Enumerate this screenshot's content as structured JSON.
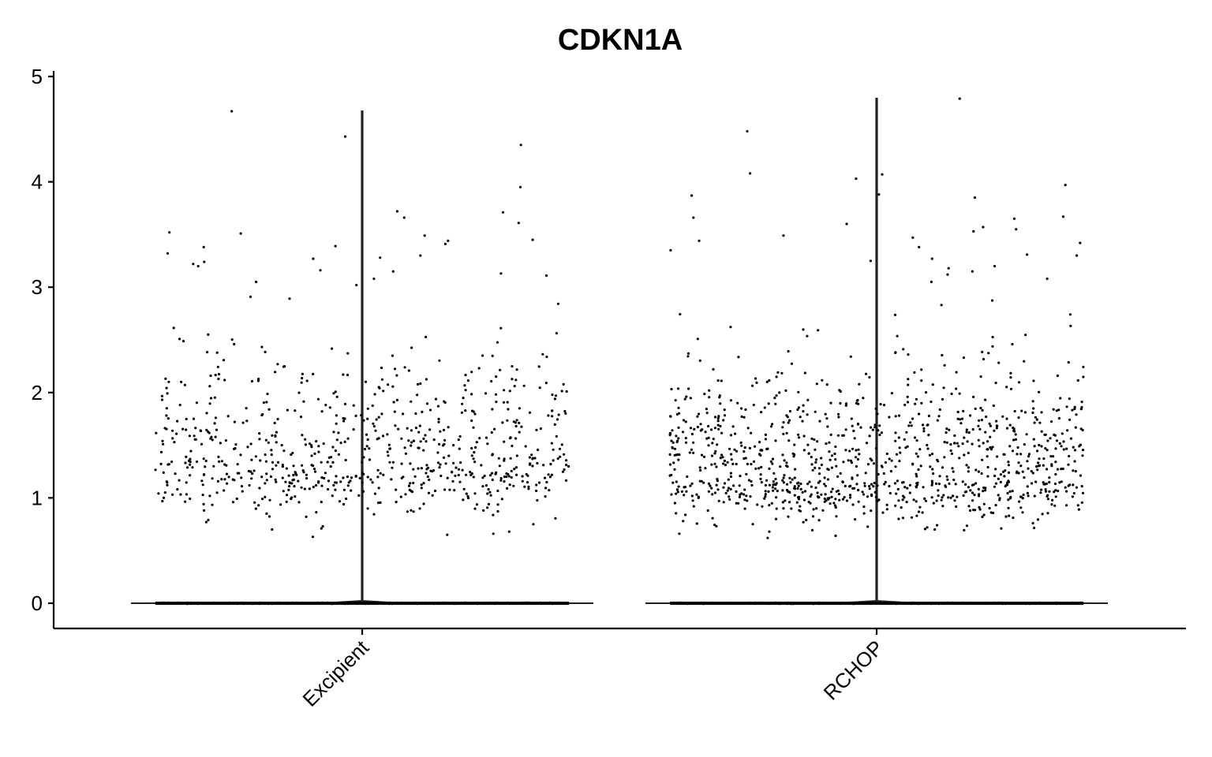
{
  "chart_data": {
    "type": "violin",
    "title": "CDKN1A",
    "xlabel": "",
    "ylabel": "",
    "categories": [
      "Excipient",
      "RCHOP"
    ],
    "ylim": [
      -0.24,
      5.03
    ],
    "yticks": [
      0,
      1,
      2,
      3,
      4,
      5
    ],
    "ytick_labels": [
      "0",
      "1",
      "2",
      "3",
      "4",
      "5"
    ],
    "grid": false,
    "legend": "none",
    "point_color": "#000000",
    "series": [
      {
        "category": "Excipient",
        "max": 4.67,
        "zero_mass": "large",
        "expressed_range": [
          0.63,
          4.67
        ],
        "expressed_density_mode": 1.25,
        "expressed_points": [
          4.67,
          4.43,
          4.35,
          3.95,
          3.72,
          3.71,
          3.66,
          3.61,
          3.52,
          3.51,
          3.49,
          3.45,
          3.44,
          3.41,
          3.39,
          3.38,
          3.32,
          3.3,
          3.28,
          3.27,
          3.24,
          3.22,
          3.2,
          3.16,
          3.15,
          3.13,
          3.11,
          3.08,
          3.05,
          3.02,
          0.96,
          0.93,
          0.9,
          0.88,
          0.85,
          0.82,
          0.79,
          0.77,
          0.75,
          0.73,
          0.71,
          0.7,
          0.68,
          0.66,
          0.65,
          0.63
        ],
        "bulk_expressed_count": 720
      },
      {
        "category": "RCHOP",
        "max": 4.79,
        "zero_mass": "large",
        "expressed_range": [
          0.62,
          4.79
        ],
        "expressed_density_mode": 1.15,
        "expressed_points": [
          4.79,
          4.48,
          4.08,
          4.07,
          4.03,
          3.97,
          3.88,
          3.87,
          3.85,
          3.67,
          3.66,
          3.65,
          3.6,
          3.57,
          3.55,
          3.53,
          3.49,
          3.47,
          3.44,
          3.42,
          3.38,
          3.35,
          3.31,
          3.3,
          3.27,
          3.25,
          3.2,
          3.18,
          3.15,
          3.12,
          3.08,
          3.05,
          0.95,
          0.92,
          0.89,
          0.86,
          0.83,
          0.8,
          0.78,
          0.76,
          0.74,
          0.72,
          0.7,
          0.68,
          0.66,
          0.64,
          0.62
        ],
        "bulk_expressed_count": 1050
      }
    ]
  }
}
